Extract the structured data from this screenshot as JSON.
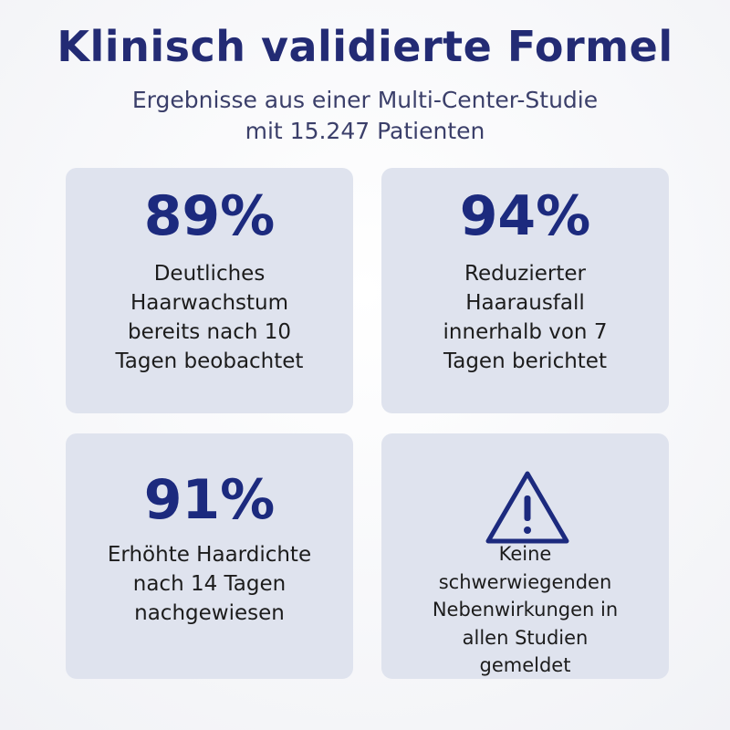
{
  "header": {
    "title": "Klinisch validierte Formel",
    "subtitle": [
      "Ergebnisse aus einer Multi-Center-Studie",
      "mit 15.247 Patienten"
    ]
  },
  "cards": [
    {
      "stat": "89%",
      "description": [
        "Deutliches",
        "Haarwachstum",
        "bereits nach 10",
        "Tagen beobachtet"
      ]
    },
    {
      "stat": "94%",
      "description": [
        "Reduzierter",
        "Haarausfall",
        "innerhalb von 7",
        "Tagen berichtet"
      ]
    },
    {
      "stat": "91%",
      "description": [
        "Erhöhte Haardichte",
        "nach 14 Tagen",
        "nachgewiesen"
      ]
    },
    {
      "description": [
        "Keine",
        "schwerwiegenden",
        "Nebenwirkungen in",
        "allen Studien",
        "gemeldet"
      ]
    }
  ]
}
